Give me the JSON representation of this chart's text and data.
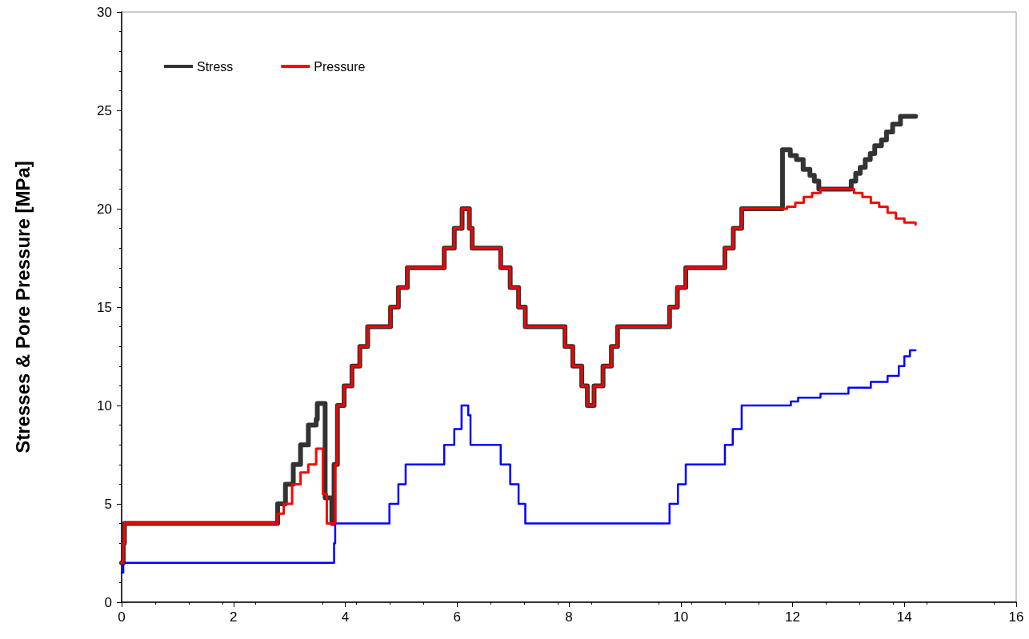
{
  "chart_data": {
    "type": "step",
    "ylabel": "Stresses & Pore Pressure [MPa]",
    "xlim": [
      0,
      16
    ],
    "xticks": [
      0,
      2,
      4,
      6,
      8,
      10,
      12,
      14,
      16
    ],
    "ylim": [
      0,
      30
    ],
    "yticks": [
      0,
      5,
      10,
      15,
      20,
      25,
      30
    ],
    "grid": false,
    "legend": "top left",
    "marker": "none",
    "line_style": "solid",
    "series": [
      {
        "name": "Stress",
        "color": "#333333",
        "x": [
          0,
          0.03,
          0.05,
          2.79,
          2.93,
          3.07,
          3.2,
          3.34,
          3.48,
          3.5,
          3.64,
          3.76,
          3.8,
          3.86,
          3.98,
          4.12,
          4.26,
          4.4,
          4.81,
          4.95,
          5.11,
          5.77,
          5.95,
          6.09,
          6.22,
          6.27,
          6.78,
          6.95,
          7.1,
          7.22,
          7.93,
          8.07,
          8.23,
          8.33,
          8.45,
          8.61,
          8.76,
          8.87,
          9.8,
          9.94,
          10.09,
          10.79,
          10.94,
          11.09,
          11.82,
          11.96,
          12.07,
          12.19,
          12.31,
          12.39,
          12.47,
          13.05,
          13.13,
          13.21,
          13.3,
          13.39,
          13.47,
          13.59,
          13.68,
          13.79,
          13.93,
          14.02,
          14.2
        ],
        "values": [
          2,
          3,
          4,
          5,
          6,
          7,
          8,
          9,
          9.3,
          10.1,
          5.3,
          4,
          7,
          10,
          11,
          12,
          13,
          14,
          15,
          16,
          17,
          18,
          19,
          20,
          19,
          18,
          17,
          16,
          15,
          14,
          13,
          12,
          11,
          10,
          11,
          12,
          13,
          14,
          15,
          16,
          17,
          18,
          19,
          20,
          23,
          22.7,
          22.5,
          22,
          21.7,
          21.4,
          21,
          21.4,
          21.8,
          22.1,
          22.5,
          22.8,
          23.2,
          23.5,
          23.9,
          24.3,
          24.7,
          24.7,
          24.7
        ]
      },
      {
        "name": "Pressure",
        "color": "#ff0000",
        "x": [
          0,
          0.03,
          0.05,
          2.79,
          2.9,
          3.05,
          3.2,
          3.34,
          3.48,
          3.6,
          3.67,
          3.82,
          3.86,
          3.98,
          4.12,
          4.26,
          4.4,
          4.81,
          4.95,
          5.11,
          5.77,
          5.95,
          6.09,
          6.22,
          6.27,
          6.78,
          6.95,
          7.1,
          7.22,
          7.93,
          8.07,
          8.23,
          8.33,
          8.45,
          8.61,
          8.76,
          8.87,
          9.8,
          9.94,
          10.09,
          10.79,
          10.94,
          11.09,
          11.9,
          12.05,
          12.2,
          12.35,
          12.5,
          13.1,
          13.25,
          13.4,
          13.55,
          13.7,
          13.85,
          14.0,
          14.2
        ],
        "values": [
          2,
          3,
          4,
          4.5,
          5,
          6,
          6.6,
          7,
          7.8,
          5.5,
          4,
          7,
          10,
          11,
          12,
          13,
          14,
          15,
          16,
          17,
          18,
          19,
          20,
          19,
          18,
          17,
          16,
          15,
          14,
          13,
          12,
          11,
          10,
          11,
          12,
          13,
          14,
          15,
          16,
          17,
          18,
          19,
          20,
          20.1,
          20.3,
          20.6,
          20.8,
          21,
          20.8,
          20.6,
          20.3,
          20.1,
          19.8,
          19.5,
          19.3,
          19.2
        ]
      },
      {
        "color": "#0000ff",
        "x": [
          0,
          0.03,
          3.8,
          3.82,
          3.88,
          4.79,
          4.95,
          5.08,
          5.77,
          5.95,
          6.08,
          6.2,
          6.24,
          6.78,
          6.95,
          7.1,
          7.22,
          9.8,
          9.95,
          10.09,
          10.79,
          10.93,
          11.09,
          11.97,
          12.1,
          12.5,
          13.0,
          13.4,
          13.7,
          13.9,
          14.0,
          14.1,
          14.2
        ],
        "values": [
          1.5,
          2,
          3,
          4,
          4,
          5,
          6,
          7,
          8,
          8.8,
          10,
          9.5,
          8,
          7,
          6,
          5,
          4,
          5,
          6,
          7,
          8,
          8.8,
          10,
          10.2,
          10.4,
          10.6,
          10.9,
          11.2,
          11.5,
          12,
          12.5,
          12.8,
          12.8
        ]
      }
    ]
  }
}
